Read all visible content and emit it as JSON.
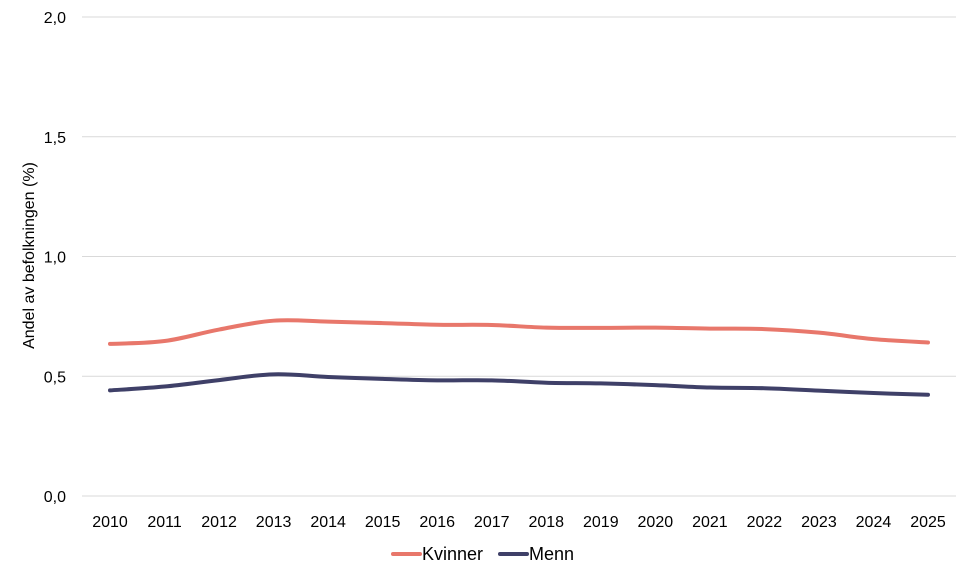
{
  "chart_data": {
    "type": "line",
    "title": "",
    "xlabel": "",
    "ylabel": "Andel av befolkningen (%)",
    "ylim": [
      0,
      2
    ],
    "yticks": [
      "0,0",
      "0,5",
      "1,0",
      "1,5",
      "2,0"
    ],
    "grid": true,
    "legend_position": "bottom",
    "categories": [
      "2010",
      "2011",
      "2012",
      "2013",
      "2014",
      "2015",
      "2016",
      "2017",
      "2018",
      "2019",
      "2020",
      "2021",
      "2022",
      "2023",
      "2024",
      "2025"
    ],
    "series": [
      {
        "name": "Kvinner",
        "color": "#E8776B",
        "values": [
          0.635,
          0.647,
          0.695,
          0.732,
          0.728,
          0.722,
          0.715,
          0.714,
          0.703,
          0.702,
          0.703,
          0.699,
          0.697,
          0.682,
          0.655,
          0.641
        ]
      },
      {
        "name": "Menn",
        "color": "#3F4068",
        "values": [
          0.441,
          0.457,
          0.484,
          0.508,
          0.497,
          0.489,
          0.483,
          0.483,
          0.473,
          0.47,
          0.463,
          0.453,
          0.45,
          0.44,
          0.43,
          0.423
        ]
      }
    ]
  }
}
